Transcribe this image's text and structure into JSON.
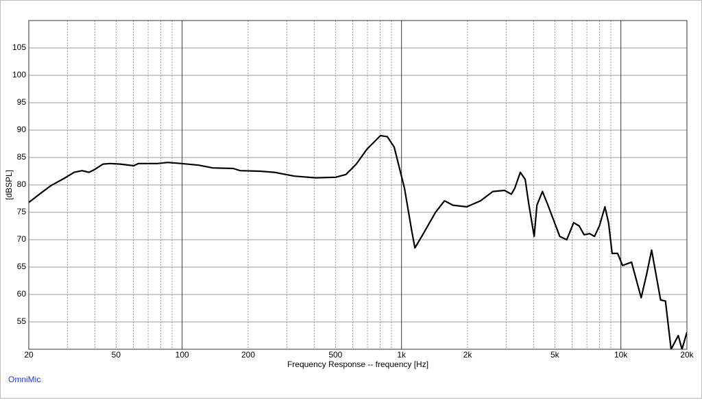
{
  "chart_data": {
    "type": "line",
    "xlabel": "Frequency Response -- frequency [Hz]",
    "ylabel": "[dBSPL]",
    "footer": "OmniMic",
    "xscale": "log",
    "grid": true,
    "xlim": [
      20,
      20000
    ],
    "ylim": [
      50,
      110
    ],
    "xticks": [
      20,
      50,
      100,
      200,
      500,
      {
        "value": 1000,
        "label": "1k"
      },
      {
        "value": 2000,
        "label": "2k"
      },
      {
        "value": 5000,
        "label": "5k"
      },
      {
        "value": 10000,
        "label": "10k"
      },
      {
        "value": 20000,
        "label": "20k"
      }
    ],
    "xgrid_major": [
      100,
      1000,
      10000
    ],
    "xgrid_minor": [
      30,
      40,
      50,
      60,
      70,
      80,
      90,
      200,
      300,
      400,
      500,
      600,
      700,
      800,
      900,
      2000,
      3000,
      4000,
      5000,
      6000,
      7000,
      8000,
      9000
    ],
    "yticks": [
      55,
      60,
      65,
      70,
      75,
      80,
      85,
      90,
      95,
      100,
      105
    ],
    "series": [
      {
        "color": "#000000",
        "x": [
          20,
          22.7,
          25.3,
          29.3,
          32.2,
          35,
          37.6,
          39.9,
          43.6,
          46.8,
          52.3,
          60.2,
          63.2,
          77.1,
          86,
          99.4,
          119,
          138,
          171,
          184,
          227,
          263,
          325,
          405,
          501,
          558,
          622,
          695,
          802,
          862,
          926,
          1032,
          1110,
          1151,
          1237,
          1429,
          1570,
          1715,
          1983,
          2291,
          2609,
          2950,
          3168,
          3284,
          3480,
          3664,
          3800,
          4026,
          4143,
          4390,
          4652,
          5266,
          5665,
          6094,
          6457,
          6798,
          7203,
          7582,
          7982,
          8461,
          8784,
          9119,
          9666,
          10175,
          11180,
          12376,
          13119,
          13807,
          15167,
          15972,
          16934,
          18273,
          18986,
          20000
        ],
        "values": [
          76.8,
          78.5,
          79.9,
          81.3,
          82.3,
          82.6,
          82.3,
          82.8,
          83.8,
          83.9,
          83.8,
          83.5,
          83.9,
          83.9,
          84.1,
          83.9,
          83.6,
          83.1,
          83,
          82.6,
          82.5,
          82.3,
          81.6,
          81.3,
          81.4,
          81.9,
          83.8,
          86.5,
          89,
          88.8,
          86.9,
          79.4,
          71.9,
          68.5,
          70.6,
          75,
          77.1,
          76.3,
          76,
          77.1,
          78.8,
          79,
          78.3,
          79.4,
          82.3,
          81,
          76.6,
          70.6,
          76.3,
          78.8,
          76.3,
          70.6,
          70,
          73.1,
          72.5,
          70.9,
          71.1,
          70.6,
          72.5,
          76,
          73.1,
          67.5,
          67.5,
          65.3,
          65.9,
          59.4,
          63.8,
          68.1,
          59,
          58.8,
          50,
          52.5,
          50,
          53.1
        ]
      }
    ]
  }
}
